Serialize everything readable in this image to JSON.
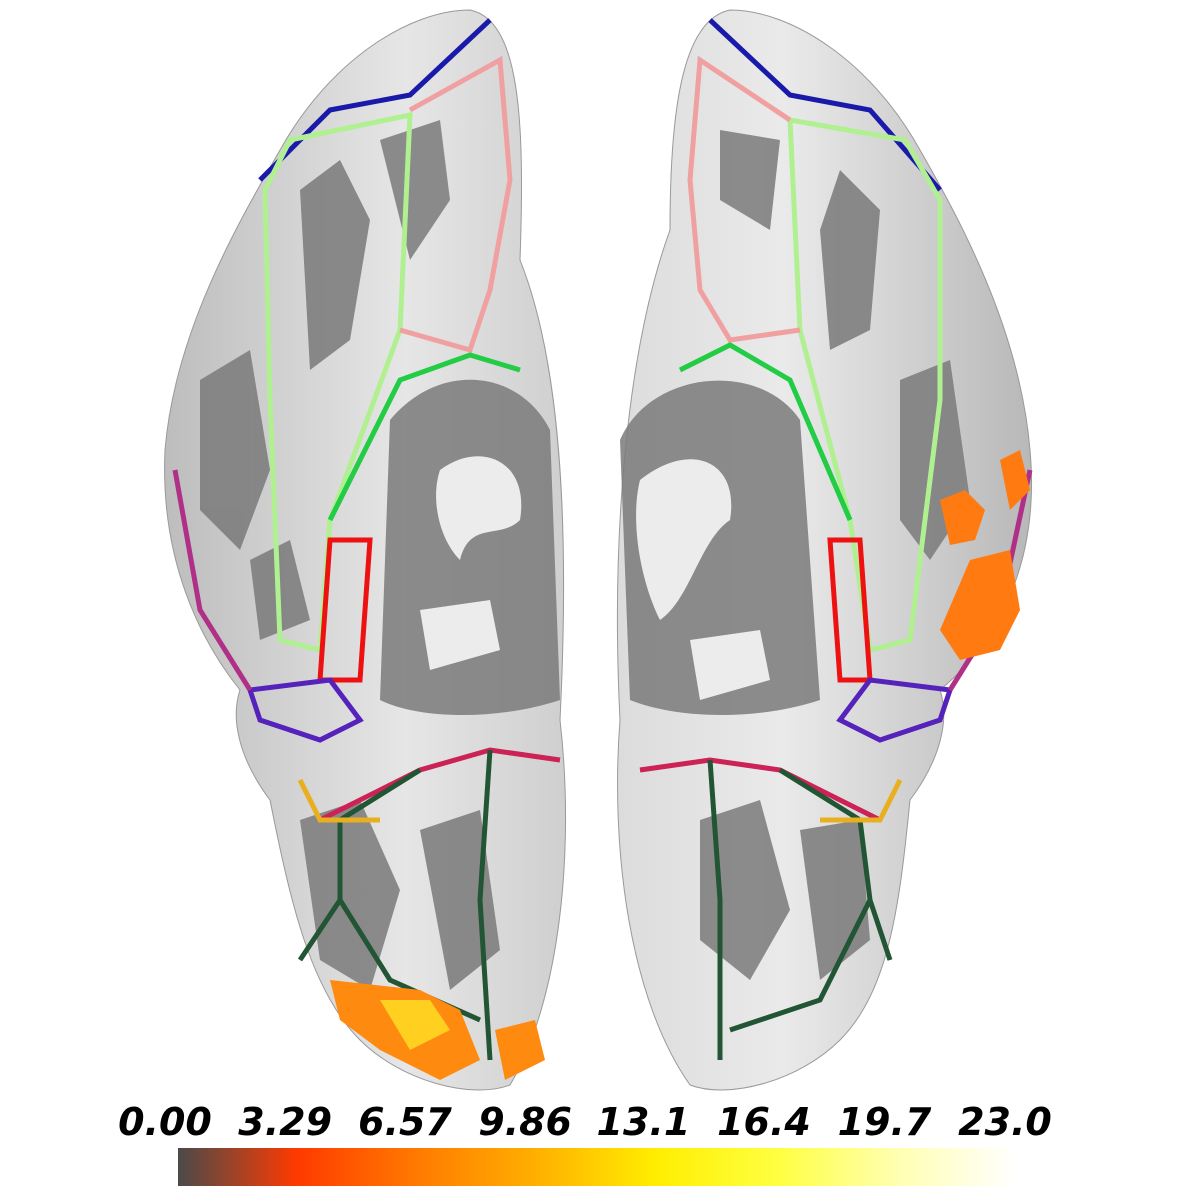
{
  "colorbar": {
    "clim": [
      0,
      23
    ],
    "ticks": [
      {
        "value": 0,
        "label": "0.00"
      },
      3.29,
      6.57,
      9.86,
      13.1,
      16.4,
      19.7,
      {
        "value": 23,
        "label": "23.0"
      }
    ],
    "colormap": [
      "#4a4a4a",
      "#ff3a00",
      "#ff7a00",
      "#ffb000",
      "#ffee00",
      "#ffff40",
      "#ffffb0",
      "#ffffff"
    ]
  }
}
